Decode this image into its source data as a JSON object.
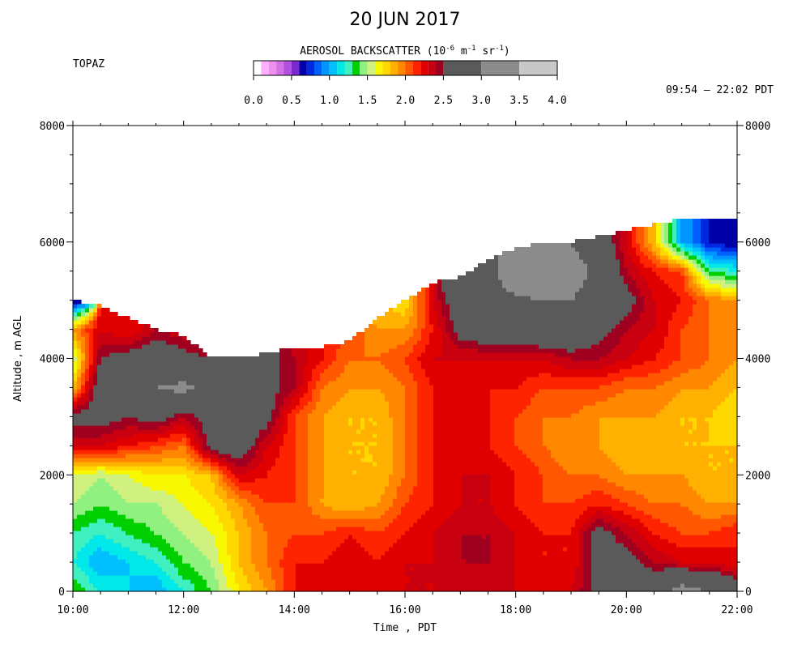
{
  "header": {
    "title": "20 JUN 2017",
    "station": "TOPAZ",
    "time_range": "09:54 – 22:02 PDT"
  },
  "colorbar": {
    "title_main": "AEROSOL BACKSCATTER (10",
    "title_exp1": "-6",
    "title_mid": " m",
    "title_exp2": "-1",
    "title_mid2": " sr",
    "title_exp3": "-1",
    "title_end": ")",
    "tick_labels": [
      "0.0",
      "0.5",
      "1.0",
      "1.5",
      "2.0",
      "2.5",
      "3.0",
      "3.5",
      "4.0"
    ],
    "bins": [
      {
        "lo": 0.0,
        "hi": 0.1,
        "color": "#ffffff"
      },
      {
        "lo": 0.1,
        "hi": 0.2,
        "color": "#ffb0ff"
      },
      {
        "lo": 0.2,
        "hi": 0.3,
        "color": "#ee90ee"
      },
      {
        "lo": 0.3,
        "hi": 0.4,
        "color": "#d670e6"
      },
      {
        "lo": 0.4,
        "hi": 0.5,
        "color": "#b050dc"
      },
      {
        "lo": 0.5,
        "hi": 0.6,
        "color": "#7a28d0"
      },
      {
        "lo": 0.6,
        "hi": 0.7,
        "color": "#0000a8"
      },
      {
        "lo": 0.7,
        "hi": 0.8,
        "color": "#0028e0"
      },
      {
        "lo": 0.8,
        "hi": 0.9,
        "color": "#0060ff"
      },
      {
        "lo": 0.9,
        "hi": 1.0,
        "color": "#0096ff"
      },
      {
        "lo": 1.0,
        "hi": 1.1,
        "color": "#00c0ff"
      },
      {
        "lo": 1.1,
        "hi": 1.2,
        "color": "#00e8e8"
      },
      {
        "lo": 1.2,
        "hi": 1.3,
        "color": "#40f0c0"
      },
      {
        "lo": 1.3,
        "hi": 1.4,
        "color": "#00d000"
      },
      {
        "lo": 1.4,
        "hi": 1.5,
        "color": "#90f080"
      },
      {
        "lo": 1.5,
        "hi": 1.6,
        "color": "#d0f080"
      },
      {
        "lo": 1.6,
        "hi": 1.7,
        "color": "#f8f800"
      },
      {
        "lo": 1.7,
        "hi": 1.8,
        "color": "#ffd800"
      },
      {
        "lo": 1.8,
        "hi": 1.9,
        "color": "#ffb000"
      },
      {
        "lo": 1.9,
        "hi": 2.0,
        "color": "#ff8800"
      },
      {
        "lo": 2.0,
        "hi": 2.1,
        "color": "#ff5800"
      },
      {
        "lo": 2.1,
        "hi": 2.2,
        "color": "#ff2400"
      },
      {
        "lo": 2.2,
        "hi": 2.3,
        "color": "#e00000"
      },
      {
        "lo": 2.3,
        "hi": 2.4,
        "color": "#c80010"
      },
      {
        "lo": 2.4,
        "hi": 2.5,
        "color": "#a00020"
      },
      {
        "lo": 2.5,
        "hi": 3.0,
        "color": "#5a5a5a"
      },
      {
        "lo": 3.0,
        "hi": 3.5,
        "color": "#8c8c8c"
      },
      {
        "lo": 3.5,
        "hi": 4.0,
        "color": "#c8c8c8"
      }
    ]
  },
  "chart_data": {
    "type": "heatmap",
    "xlabel": "Time , PDT",
    "ylabel": "Altitude , m AGL",
    "x_unit": "hours PDT",
    "xlim": [
      10.0,
      22.0
    ],
    "ylim": [
      0,
      8000
    ],
    "x_tick_labels": [
      "10:00",
      "12:00",
      "14:00",
      "16:00",
      "18:00",
      "20:00",
      "22:00"
    ],
    "x_tick_values": [
      10,
      12,
      14,
      16,
      18,
      20,
      22
    ],
    "y_tick_labels": [
      "0",
      "2000",
      "4000",
      "6000",
      "8000"
    ],
    "y_tick_values": [
      0,
      2000,
      4000,
      6000,
      8000
    ],
    "value_unit": "10^-6 m^-1 sr^-1",
    "grid_x_hours": [
      10.0,
      10.5,
      11.0,
      11.5,
      12.0,
      12.5,
      13.0,
      13.5,
      14.0,
      14.5,
      15.0,
      15.5,
      16.0,
      16.5,
      17.0,
      17.5,
      18.0,
      18.5,
      19.0,
      19.5,
      20.0,
      20.5,
      21.0,
      21.5,
      22.0
    ],
    "grid_y_m": [
      0,
      500,
      1000,
      1500,
      2000,
      2500,
      3000,
      3500,
      4000,
      4500,
      5000,
      5500,
      6000,
      6500
    ],
    "data_top_altitude_m": [
      5000,
      4900,
      4700,
      4500,
      4400,
      4000,
      4000,
      4100,
      4200,
      4200,
      4300,
      4700,
      5000,
      5300,
      5400,
      5700,
      5900,
      6000,
      6000,
      6100,
      6200,
      6300,
      6400,
      6400,
      6400
    ],
    "backscatter_rows_low_to_high": [
      [
        1.4,
        1.2,
        1.1,
        1.0,
        1.2,
        1.4,
        1.7,
        1.9,
        2.2,
        2.3,
        2.3,
        2.3,
        2.3,
        2.3,
        2.4,
        2.3,
        2.3,
        2.3,
        2.3,
        2.6,
        2.7,
        2.8,
        3.2,
        3.0,
        2.7
      ],
      [
        1.2,
        1.0,
        1.1,
        1.2,
        1.4,
        1.5,
        1.8,
        2.0,
        2.2,
        2.2,
        2.3,
        2.2,
        2.3,
        2.3,
        2.4,
        2.4,
        2.3,
        2.2,
        2.2,
        2.6,
        2.6,
        2.4,
        2.3,
        2.3,
        2.2
      ],
      [
        1.3,
        1.2,
        1.3,
        1.4,
        1.5,
        1.6,
        1.8,
        2.0,
        2.1,
        2.1,
        2.2,
        2.1,
        2.2,
        2.3,
        2.4,
        2.4,
        2.3,
        2.2,
        2.2,
        2.6,
        2.4,
        2.2,
        2.1,
        2.1,
        2.2
      ],
      [
        1.5,
        1.4,
        1.5,
        1.5,
        1.6,
        1.7,
        1.9,
        2.1,
        2.1,
        1.9,
        1.8,
        1.9,
        2.1,
        2.2,
        2.3,
        2.3,
        2.2,
        2.1,
        2.1,
        2.2,
        2.1,
        2.0,
        2.0,
        1.9,
        1.9
      ],
      [
        1.6,
        1.5,
        1.6,
        1.7,
        1.7,
        1.8,
        2.3,
        2.2,
        2.1,
        1.9,
        1.8,
        1.8,
        2.0,
        2.2,
        2.3,
        2.3,
        2.2,
        2.1,
        2.0,
        2.0,
        1.9,
        1.9,
        1.9,
        1.8,
        1.8
      ],
      [
        2.3,
        2.3,
        2.2,
        2.1,
        2.0,
        2.6,
        2.7,
        2.3,
        2.1,
        1.9,
        1.8,
        1.8,
        2.0,
        2.2,
        2.3,
        2.2,
        2.1,
        2.0,
        1.9,
        1.9,
        1.8,
        1.8,
        1.8,
        1.8,
        1.8
      ],
      [
        2.6,
        2.6,
        2.5,
        2.6,
        2.4,
        2.6,
        2.7,
        2.6,
        2.1,
        1.9,
        1.8,
        1.8,
        2.0,
        2.2,
        2.3,
        2.2,
        2.1,
        2.0,
        2.0,
        1.9,
        1.9,
        1.9,
        1.8,
        1.8,
        1.7
      ],
      [
        1.8,
        2.7,
        2.9,
        3.0,
        3.1,
        2.9,
        2.7,
        2.6,
        2.4,
        2.0,
        1.9,
        1.9,
        2.0,
        2.2,
        2.3,
        2.2,
        2.2,
        2.1,
        2.1,
        2.1,
        2.0,
        2.0,
        1.9,
        1.9,
        1.8
      ],
      [
        1.5,
        2.5,
        2.6,
        2.7,
        2.6,
        2.5,
        2.6,
        2.6,
        2.4,
        2.2,
        2.0,
        2.0,
        2.1,
        2.3,
        2.3,
        2.3,
        2.3,
        2.3,
        2.4,
        2.4,
        2.3,
        2.2,
        2.1,
        2.0,
        1.9
      ],
      [
        1.9,
        2.3,
        2.2,
        2.4,
        2.3,
        2.2,
        null,
        null,
        2.3,
        2.2,
        2.1,
        1.9,
        1.9,
        2.2,
        2.6,
        2.7,
        2.7,
        2.8,
        2.8,
        2.6,
        2.4,
        2.3,
        2.1,
        2.0,
        2.0
      ],
      [
        0.6,
        null,
        null,
        null,
        null,
        null,
        null,
        null,
        null,
        null,
        null,
        1.8,
        1.7,
        2.3,
        2.7,
        2.8,
        2.9,
        3.0,
        3.0,
        2.8,
        2.6,
        2.3,
        2.2,
        2.0,
        1.9
      ],
      [
        null,
        null,
        null,
        null,
        null,
        null,
        null,
        null,
        null,
        null,
        null,
        null,
        null,
        null,
        2.7,
        2.8,
        3.4,
        3.5,
        3.2,
        2.9,
        2.4,
        2.2,
        2.1,
        1.3,
        1.2
      ],
      [
        null,
        null,
        null,
        null,
        null,
        null,
        null,
        null,
        null,
        null,
        null,
        null,
        null,
        null,
        null,
        null,
        null,
        3.3,
        3.0,
        2.7,
        2.3,
        1.8,
        1.0,
        0.7,
        0.6
      ],
      [
        null,
        null,
        null,
        null,
        null,
        null,
        null,
        null,
        null,
        null,
        null,
        null,
        null,
        null,
        null,
        null,
        null,
        null,
        null,
        null,
        null,
        null,
        null,
        null,
        null
      ]
    ]
  }
}
